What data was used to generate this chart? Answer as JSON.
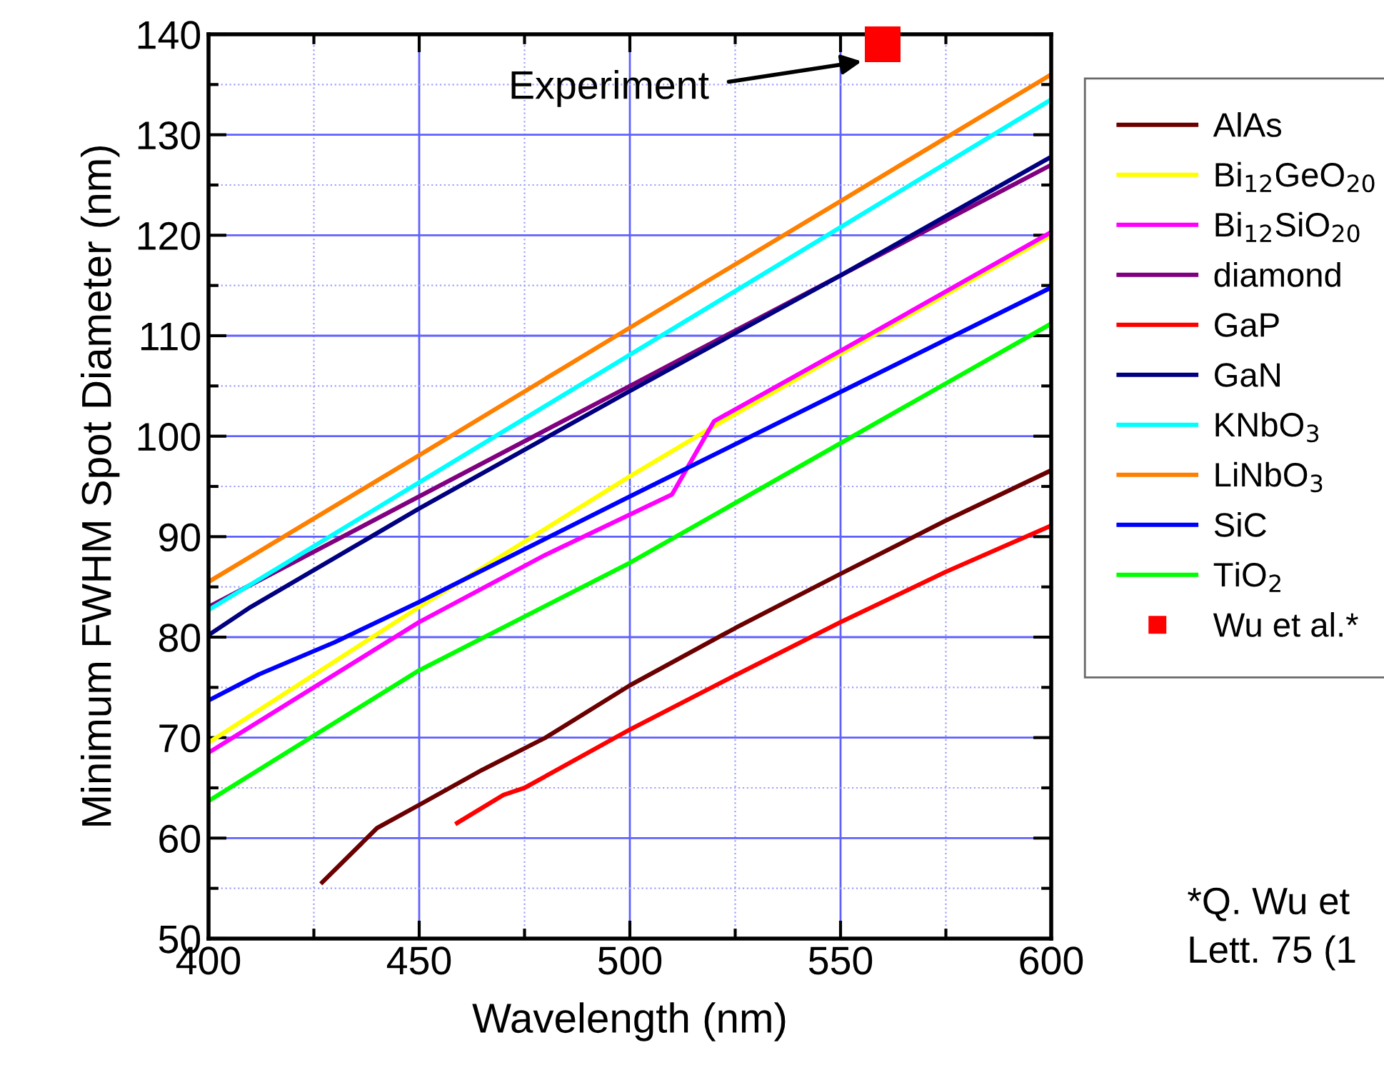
{
  "chart_data": {
    "type": "line",
    "xlabel": "Wavelength (nm)",
    "ylabel": "Minimum FWHM Spot Diameter (nm)",
    "xlim": [
      400,
      600
    ],
    "ylim": [
      50,
      140
    ],
    "xticks": [
      400,
      {
        "value": 425,
        "label": null
      },
      450,
      {
        "value": 475,
        "label": null
      },
      500,
      {
        "value": 525,
        "label": null
      },
      550,
      {
        "value": 575,
        "label": null
      },
      600
    ],
    "yticks": [
      50,
      {
        "value": 55,
        "label": null
      },
      60,
      {
        "value": 65,
        "label": null
      },
      70,
      {
        "value": 75,
        "label": null
      },
      80,
      {
        "value": 85,
        "label": null
      },
      90,
      {
        "value": 95,
        "label": null
      },
      100,
      {
        "value": 105,
        "label": null
      },
      110,
      {
        "value": 115,
        "label": null
      },
      120,
      {
        "value": 125,
        "label": null
      },
      130,
      {
        "value": 135,
        "label": null
      },
      140
    ],
    "grid": true,
    "legend": "right",
    "line_style": "solid",
    "series": [
      {
        "name": "AlAs",
        "color": "#6b0000",
        "x": [
          427,
          440,
          450,
          465,
          480,
          500,
          525,
          550,
          575,
          600
        ],
        "values": [
          55.6,
          61,
          63.3,
          66.8,
          70,
          75.2,
          80.9,
          86.3,
          91.6,
          96.6
        ]
      },
      {
        "name": "Bi$_{12}$GeO$_{20}$",
        "color": "#ffff00",
        "x": [
          400,
          450,
          500,
          520,
          550,
          600
        ],
        "values": [
          69.5,
          83,
          96,
          101,
          108.2,
          120
        ]
      },
      {
        "name": "Bi$_{12}$SiO$_{20}$",
        "color": "#ff00ff",
        "x": [
          400,
          450,
          480,
          510,
          520,
          550,
          600
        ],
        "values": [
          68.5,
          81.5,
          88.2,
          94.2,
          101.5,
          108.5,
          120.3
        ]
      },
      {
        "name": "diamond",
        "color": "#800080",
        "x": [
          400,
          450,
          500,
          550,
          600
        ],
        "values": [
          83,
          94,
          105,
          116,
          127
        ]
      },
      {
        "name": "GaP",
        "color": "#ff0000",
        "x": [
          459,
          470,
          475,
          500,
          525,
          550,
          575,
          600
        ],
        "values": [
          61.5,
          64.3,
          65,
          70.8,
          76.2,
          81.5,
          86.5,
          91.1
        ]
      },
      {
        "name": "GaN",
        "color": "#000080",
        "x": [
          400,
          410,
          450,
          500,
          550,
          600
        ],
        "values": [
          80.2,
          83,
          92.8,
          104.5,
          116,
          127.8
        ]
      },
      {
        "name": "KNbO$_{3}$",
        "color": "#00ffff",
        "x": [
          400,
          450,
          500,
          550,
          600
        ],
        "values": [
          82.7,
          95.4,
          108.1,
          120.8,
          133.5
        ]
      },
      {
        "name": "LiNbO$_{3}$",
        "color": "#ff8000",
        "x": [
          400,
          450,
          500,
          550,
          600
        ],
        "values": [
          85.5,
          98.1,
          110.8,
          123.4,
          136
        ]
      },
      {
        "name": "SiC",
        "color": "#0000ff",
        "x": [
          400,
          412,
          430,
          450,
          500,
          550,
          600
        ],
        "values": [
          73.7,
          76.3,
          79.5,
          83.5,
          94,
          104.4,
          114.8
        ]
      },
      {
        "name": "TiO$_{2}$",
        "color": "#00ff00",
        "x": [
          400,
          450,
          500,
          550,
          600
        ],
        "values": [
          63.7,
          76.7,
          87.4,
          99.3,
          111.2
        ]
      },
      {
        "name": "Wu et al.*",
        "color": "#ff0000",
        "type": "scatter",
        "marker": "square",
        "x": [
          560
        ],
        "values": [
          139
        ]
      }
    ],
    "annotations": [
      "Experiment",
      "*Q. Wu et",
      "Lett. 75 (1"
    ]
  }
}
